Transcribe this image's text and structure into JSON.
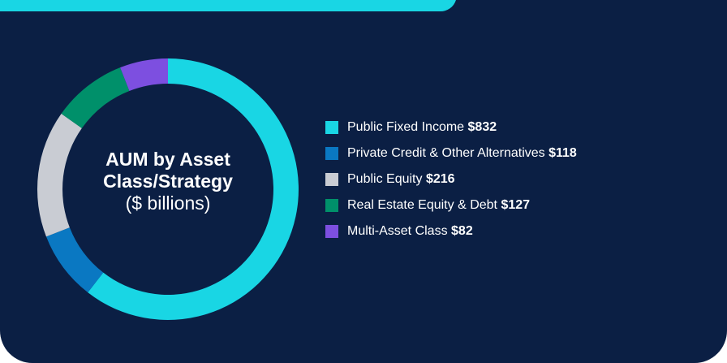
{
  "chart_data": {
    "type": "pie",
    "title": "AUM by Asset Class/Strategy",
    "subtitle": "($ billions)",
    "categories": [
      "Public Fixed Income",
      "Private Credit & Other Alternatives",
      "Public Equity",
      "Real Estate Equity & Debt",
      "Multi-Asset Class"
    ],
    "values": [
      832,
      118,
      216,
      127,
      82
    ],
    "value_labels": [
      "$832",
      "$118",
      "$216",
      "$127",
      "$82"
    ],
    "colors": [
      "#19d6e4",
      "#0a78c2",
      "#c9ccd3",
      "#00906a",
      "#7d4fe0"
    ]
  }
}
